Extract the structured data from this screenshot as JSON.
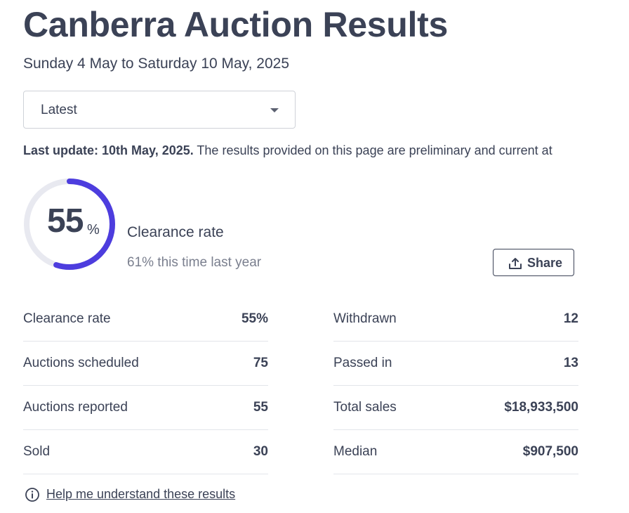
{
  "header": {
    "title": "Canberra Auction Results",
    "date_range": "Sunday 4 May to Saturday 10 May, 2025"
  },
  "period_select": {
    "selected": "Latest",
    "icon": "caret-down-icon"
  },
  "update": {
    "bold_text": "Last update: 10th May, 2025.",
    "text": " The results provided on this page are preliminary and current at"
  },
  "clearance": {
    "value": "55",
    "unit": "%",
    "rate_fraction": 0.55,
    "label": "Clearance rate",
    "comparison": "61% this time last year",
    "track_color": "#e8e9f0",
    "accent_color": "#4d3dde"
  },
  "share": {
    "label": "Share",
    "icon": "share-upload-icon"
  },
  "stats_left": [
    {
      "label": "Clearance rate",
      "value": "55%"
    },
    {
      "label": "Auctions scheduled",
      "value": "75"
    },
    {
      "label": "Auctions reported",
      "value": "55"
    },
    {
      "label": "Sold",
      "value": "30"
    }
  ],
  "stats_right": [
    {
      "label": "Withdrawn",
      "value": "12"
    },
    {
      "label": "Passed in",
      "value": "13"
    },
    {
      "label": "Total sales",
      "value": "$18,933,500"
    },
    {
      "label": "Median",
      "value": "$907,500"
    }
  ],
  "help": {
    "label": "Help me understand these results",
    "icon": "info-icon"
  }
}
